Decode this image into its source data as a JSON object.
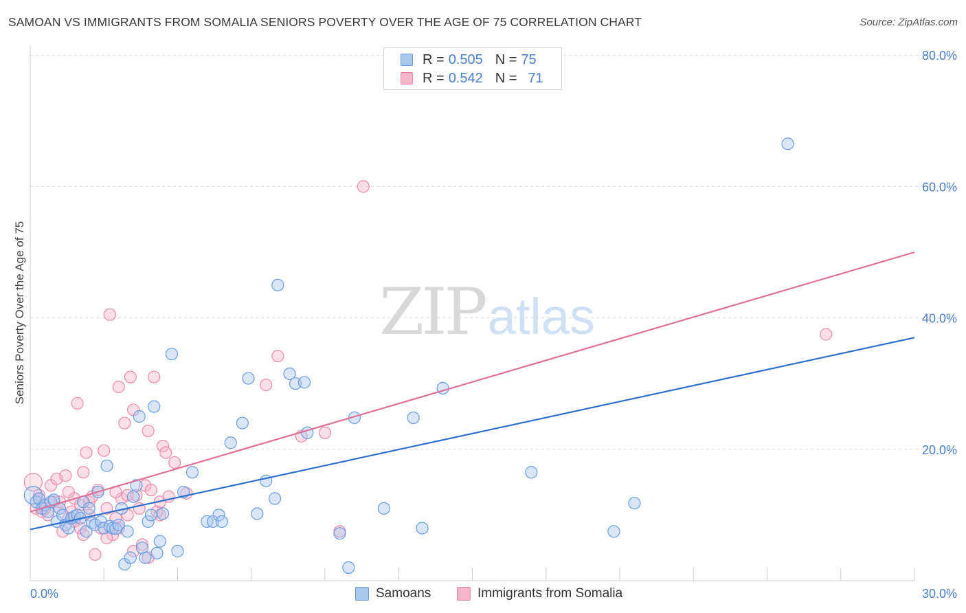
{
  "title": "SAMOAN VS IMMIGRANTS FROM SOMALIA SENIORS POVERTY OVER THE AGE OF 75 CORRELATION CHART",
  "source": "Source: ZipAtlas.com",
  "watermark": {
    "part1": "ZIP",
    "part2": "atlas"
  },
  "legend_top": {
    "rows": [
      {
        "r_label": "R =",
        "r_value": "0.505",
        "n_label": "N =",
        "n_value": "75"
      },
      {
        "r_label": "R =",
        "r_value": "0.542",
        "n_label": "N =",
        "n_value": "71"
      }
    ]
  },
  "legend_bottom": {
    "series1": "Samoans",
    "series2": "Immigrants from Somalia"
  },
  "colors": {
    "blue_fill": "#a9c8ef",
    "blue_stroke": "#6a9be0",
    "blue_line": "#2e6fce",
    "pink_fill": "#f6b6c9",
    "pink_stroke": "#ec8aa9",
    "pink_line": "#e06f98",
    "tick_text": "#4a7cc9",
    "grid": "#dcdcdc"
  },
  "chart_data": {
    "type": "scatter",
    "title": "SAMOAN VS IMMIGRANTS FROM SOMALIA SENIORS POVERTY OVER THE AGE OF 75 CORRELATION CHART",
    "xlabel": "",
    "ylabel": "Seniors Poverty Over the Age of 75",
    "xlim": [
      0,
      30
    ],
    "ylim": [
      0,
      80
    ],
    "x_tick_labels": [
      "0.0%",
      "30.0%"
    ],
    "y_tick_values": [
      20,
      40,
      60,
      80
    ],
    "y_tick_labels": [
      "20.0%",
      "40.0%",
      "60.0%",
      "80.0%"
    ],
    "series": [
      {
        "name": "Samoans",
        "r": 0.505,
        "n": 75,
        "trend": {
          "x0": 0,
          "y0": 7.8,
          "x1": 30,
          "y1": 37
        },
        "points": [
          [
            0.1,
            13.0
          ],
          [
            0.2,
            12.0
          ],
          [
            0.3,
            12.5
          ],
          [
            0.4,
            11.0
          ],
          [
            0.5,
            11.5
          ],
          [
            0.6,
            10.5
          ],
          [
            0.7,
            12.0
          ],
          [
            0.8,
            12.3
          ],
          [
            0.9,
            9.0
          ],
          [
            1.0,
            11.0
          ],
          [
            1.1,
            10.0
          ],
          [
            1.2,
            8.5
          ],
          [
            1.3,
            8.0
          ],
          [
            1.4,
            9.5
          ],
          [
            1.5,
            9.8
          ],
          [
            1.6,
            10.0
          ],
          [
            1.7,
            9.5
          ],
          [
            1.8,
            12.0
          ],
          [
            1.9,
            7.5
          ],
          [
            2.0,
            11.0
          ],
          [
            2.1,
            8.8
          ],
          [
            2.2,
            8.5
          ],
          [
            2.3,
            13.5
          ],
          [
            2.4,
            9.0
          ],
          [
            2.5,
            8.0
          ],
          [
            2.6,
            17.5
          ],
          [
            2.7,
            8.3
          ],
          [
            2.8,
            8.0
          ],
          [
            2.9,
            7.9
          ],
          [
            3.0,
            8.5
          ],
          [
            3.1,
            11.0
          ],
          [
            3.2,
            2.5
          ],
          [
            3.3,
            7.5
          ],
          [
            3.4,
            3.5
          ],
          [
            3.5,
            12.8
          ],
          [
            3.6,
            14.5
          ],
          [
            3.7,
            25.0
          ],
          [
            3.8,
            5.0
          ],
          [
            3.9,
            3.5
          ],
          [
            4.0,
            9.0
          ],
          [
            4.1,
            10.0
          ],
          [
            4.2,
            26.5
          ],
          [
            4.3,
            4.2
          ],
          [
            4.4,
            6.0
          ],
          [
            4.5,
            10.2
          ],
          [
            4.8,
            34.5
          ],
          [
            5.0,
            4.5
          ],
          [
            5.2,
            13.5
          ],
          [
            5.5,
            16.5
          ],
          [
            6.0,
            9.0
          ],
          [
            6.2,
            9.0
          ],
          [
            6.4,
            10.0
          ],
          [
            6.5,
            9.0
          ],
          [
            6.8,
            21.0
          ],
          [
            7.2,
            24.0
          ],
          [
            7.4,
            30.8
          ],
          [
            7.7,
            10.2
          ],
          [
            8.0,
            15.2
          ],
          [
            8.4,
            45.0
          ],
          [
            8.8,
            31.5
          ],
          [
            9.0,
            30.0
          ],
          [
            9.3,
            30.2
          ],
          [
            9.4,
            22.5
          ],
          [
            10.5,
            7.2
          ],
          [
            10.8,
            2.0
          ],
          [
            11.0,
            24.8
          ],
          [
            12.0,
            11.0
          ],
          [
            13.0,
            24.8
          ],
          [
            13.3,
            8.0
          ],
          [
            14.0,
            29.3
          ],
          [
            17.0,
            16.5
          ],
          [
            19.8,
            7.5
          ],
          [
            20.5,
            11.8
          ],
          [
            25.7,
            66.5
          ],
          [
            8.3,
            12.5
          ]
        ]
      },
      {
        "name": "Immigrants from Somalia",
        "r": 0.542,
        "n": 71,
        "trend": {
          "x0": 0,
          "y0": 10.5,
          "x1": 30,
          "y1": 50
        },
        "points": [
          [
            0.1,
            15.0
          ],
          [
            0.2,
            11.0
          ],
          [
            0.3,
            12.5
          ],
          [
            0.4,
            10.5
          ],
          [
            0.5,
            11.5
          ],
          [
            0.6,
            10.0
          ],
          [
            0.7,
            14.5
          ],
          [
            0.8,
            12.0
          ],
          [
            0.9,
            15.5
          ],
          [
            1.0,
            11.0
          ],
          [
            1.1,
            7.5
          ],
          [
            1.2,
            16.0
          ],
          [
            1.3,
            13.5
          ],
          [
            1.4,
            10.5
          ],
          [
            1.5,
            9.0
          ],
          [
            1.6,
            27.0
          ],
          [
            1.7,
            8.0
          ],
          [
            1.8,
            16.5
          ],
          [
            1.9,
            19.5
          ],
          [
            2.0,
            12.0
          ],
          [
            2.1,
            12.8
          ],
          [
            2.2,
            4.0
          ],
          [
            2.3,
            13.8
          ],
          [
            2.4,
            8.0
          ],
          [
            2.5,
            19.8
          ],
          [
            2.6,
            11.0
          ],
          [
            2.7,
            40.5
          ],
          [
            2.8,
            7.0
          ],
          [
            2.9,
            9.5
          ],
          [
            3.0,
            29.5
          ],
          [
            3.1,
            12.5
          ],
          [
            3.2,
            24.0
          ],
          [
            3.3,
            13.0
          ],
          [
            3.4,
            31.0
          ],
          [
            3.5,
            26.0
          ],
          [
            3.6,
            13.0
          ],
          [
            3.7,
            11.0
          ],
          [
            3.8,
            5.5
          ],
          [
            3.9,
            14.5
          ],
          [
            4.0,
            22.8
          ],
          [
            4.1,
            13.8
          ],
          [
            4.2,
            31.0
          ],
          [
            4.3,
            10.5
          ],
          [
            4.4,
            12.0
          ],
          [
            4.5,
            20.5
          ],
          [
            4.6,
            19.5
          ],
          [
            4.9,
            18.0
          ],
          [
            5.3,
            13.3
          ],
          [
            8.4,
            34.2
          ],
          [
            8.0,
            29.8
          ],
          [
            9.2,
            22.0
          ],
          [
            10.0,
            22.5
          ],
          [
            10.5,
            7.5
          ],
          [
            11.3,
            60.0
          ],
          [
            27.0,
            37.5
          ],
          [
            1.5,
            12.5
          ],
          [
            3.0,
            8.0
          ],
          [
            4.0,
            3.5
          ],
          [
            2.0,
            10.0
          ],
          [
            1.0,
            12.0
          ],
          [
            0.5,
            11.0
          ],
          [
            3.5,
            4.5
          ],
          [
            4.7,
            12.8
          ],
          [
            1.8,
            7.0
          ],
          [
            2.6,
            6.5
          ],
          [
            3.3,
            10.0
          ],
          [
            0.3,
            13.0
          ],
          [
            1.3,
            9.5
          ],
          [
            2.9,
            13.5
          ],
          [
            4.4,
            10.0
          ],
          [
            1.7,
            11.5
          ]
        ]
      }
    ]
  }
}
